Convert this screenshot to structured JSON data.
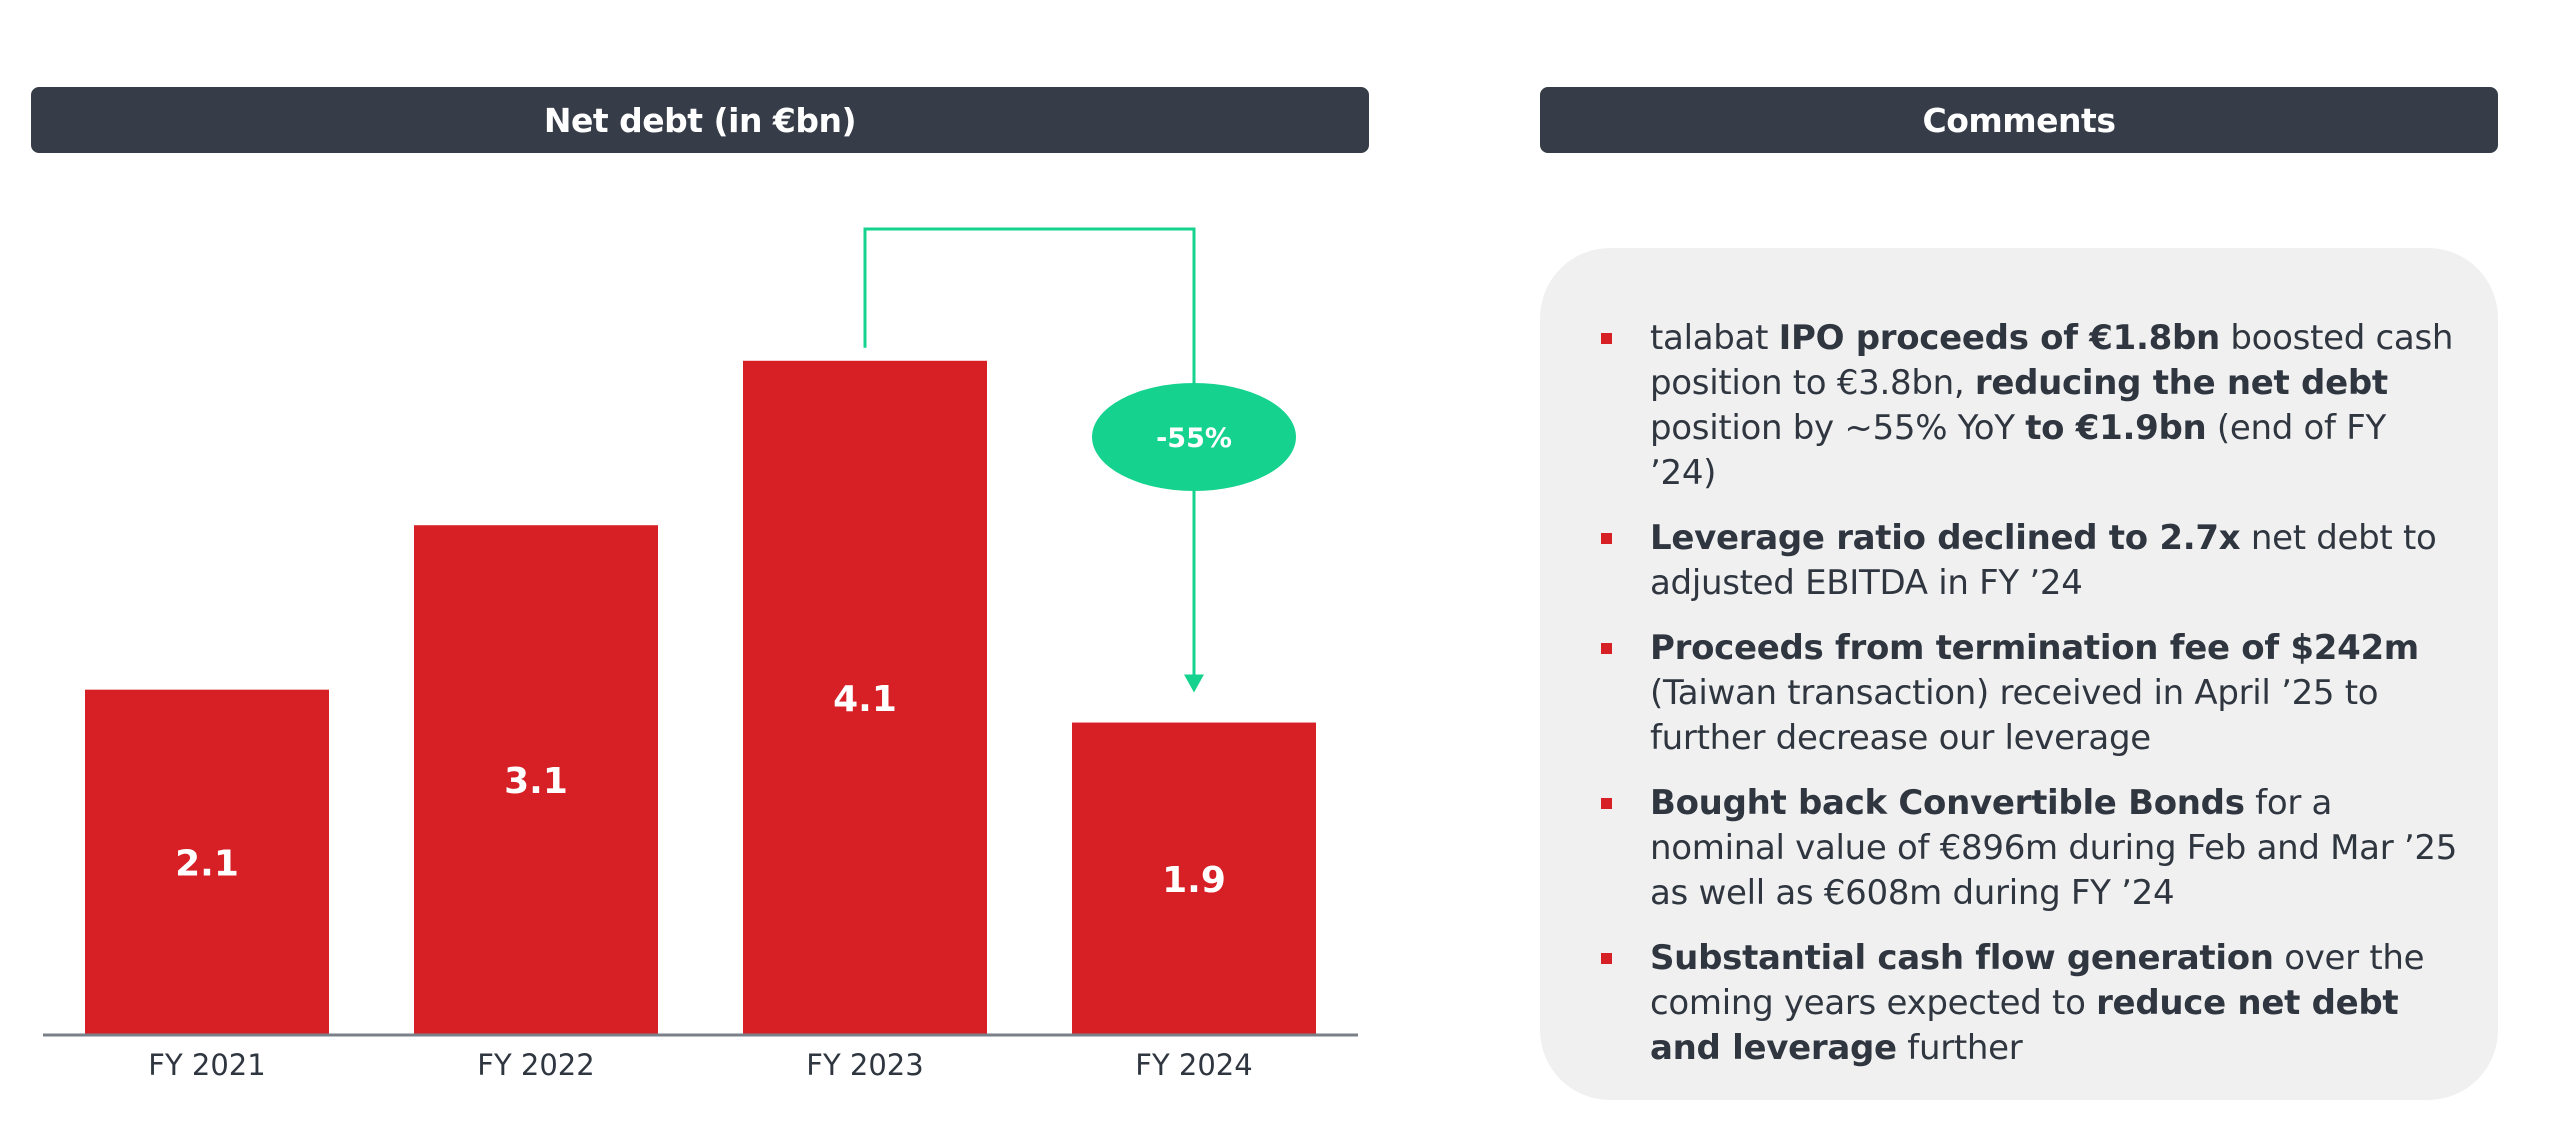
{
  "chart_data": {
    "type": "bar",
    "title": "Net debt (in €bn)",
    "categories": [
      "FY 2021",
      "FY 2022",
      "FY 2023",
      "FY 2024"
    ],
    "values": [
      2.1,
      3.1,
      4.1,
      1.9
    ],
    "value_labels": [
      "2.1",
      "3.1",
      "4.1",
      "1.9"
    ],
    "ylim": [
      0,
      4.5
    ],
    "grid": false,
    "bar_color": "#d71f26",
    "annotation": {
      "from": "FY 2023",
      "to": "FY 2024",
      "label": "-55%",
      "color": "#15d38e"
    }
  },
  "comments": {
    "title": "Comments",
    "items": [
      {
        "segments": [
          {
            "t": "talabat ",
            "b": false
          },
          {
            "t": "IPO proceeds of €1.8bn",
            "b": true
          },
          {
            "t": " boosted cash position to €3.8bn, ",
            "b": false
          },
          {
            "t": "reducing the net debt",
            "b": true
          },
          {
            "t": " position by ~55% YoY ",
            "b": false
          },
          {
            "t": "to €1.9bn",
            "b": true
          },
          {
            "t": " (end of FY ’24)",
            "b": false
          }
        ]
      },
      {
        "segments": [
          {
            "t": "Leverage ratio declined to 2.7x",
            "b": true
          },
          {
            "t": " net debt to adjusted EBITDA in FY ’24",
            "b": false
          }
        ]
      },
      {
        "segments": [
          {
            "t": "Proceeds from termination fee of $242m",
            "b": true
          },
          {
            "t": " (Taiwan transaction) received in April ’25 to further decrease our leverage",
            "b": false
          }
        ]
      },
      {
        "segments": [
          {
            "t": "Bought back Convertible Bonds",
            "b": true
          },
          {
            "t": " for a nominal value of €896m during Feb and Mar ’25 as well as €608m during FY ’24",
            "b": false
          }
        ]
      },
      {
        "segments": [
          {
            "t": "Substantial cash flow generation",
            "b": true
          },
          {
            "t": " over the coming years expected to ",
            "b": false
          },
          {
            "t": "reduce net debt and leverage",
            "b": true
          },
          {
            "t": " further",
            "b": false
          }
        ]
      }
    ]
  }
}
